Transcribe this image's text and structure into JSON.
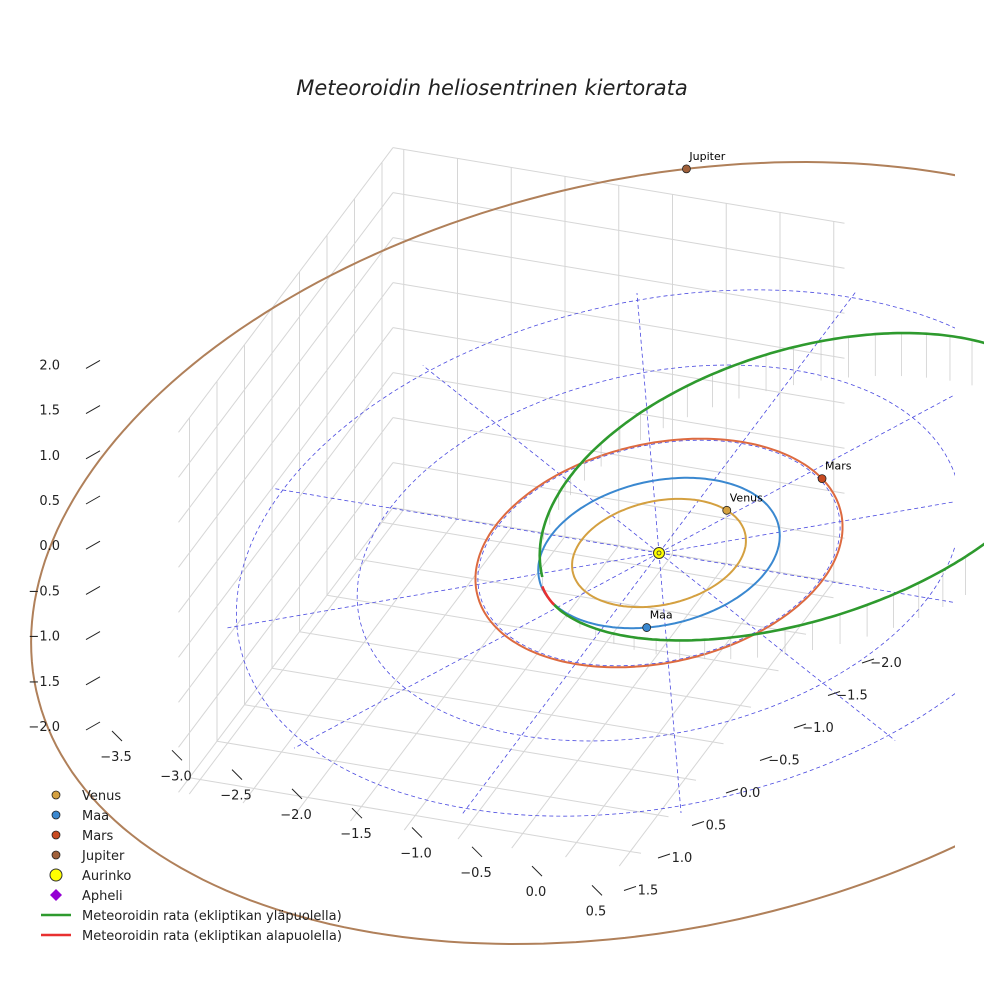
{
  "chart_data": {
    "type": "line",
    "projection": "3d",
    "title": "Meteoroidin heliosentrinen kiertorata",
    "xlabel": "",
    "ylabel": "",
    "zlabel": "",
    "x_ticks": [
      "−3.5",
      "−3.0",
      "−2.5",
      "−2.0",
      "−1.5",
      "−1.0",
      "−0.5",
      "0.0",
      "0.5"
    ],
    "y_ticks": [
      "−2.0",
      "−1.5",
      "−1.0",
      "−0.5",
      "0.0",
      "0.5",
      "1.0",
      "1.5"
    ],
    "z_ticks": [
      "−2.0",
      "−1.5",
      "−1.0",
      "−0.5",
      "0.0",
      "0.5",
      "1.0",
      "1.5",
      "2.0"
    ],
    "xlim": [
      -3.6,
      0.6
    ],
    "ylim": [
      -2.2,
      1.7
    ],
    "zlim": [
      -2.0,
      2.0
    ],
    "grid": true,
    "legend_position": "bottom-left",
    "colors": {
      "venus": "#d4a040",
      "maa": "#3a88d0",
      "mars": "#dd6a40",
      "jupiter": "#b0805a",
      "aurinko": "#ffff00",
      "apheli": "#9400d3",
      "above": "#2e9a2e",
      "below": "#e83030",
      "reference": "#4a4ae0"
    },
    "orbits": [
      {
        "name": "Venus",
        "radius_au": 0.72
      },
      {
        "name": "Maa",
        "radius_au": 1.0
      },
      {
        "name": "Mars",
        "radius_au": 1.52
      },
      {
        "name": "Jupiter",
        "radius_au": 5.2
      }
    ],
    "planet_labels": [
      {
        "name": "Venus",
        "text": "Venus"
      },
      {
        "name": "Maa",
        "text": "Maa"
      },
      {
        "name": "Mars",
        "text": "Mars"
      },
      {
        "name": "Jupiter",
        "text": "Jupiter"
      }
    ],
    "meteoroid": {
      "perihelion_au": 0.98,
      "aphelion_au": 3.4,
      "above_label": "Meteoroidin rata (ekliptikan yläpuolella)",
      "below_label": "Meteoroidin rata (ekliptikan alapuolella)"
    },
    "legend": [
      {
        "label": "Venus",
        "marker": "dot",
        "color": "#d4a040"
      },
      {
        "label": "Maa",
        "marker": "dot",
        "color": "#3a88d0"
      },
      {
        "label": "Mars",
        "marker": "dot",
        "color": "#c84a20"
      },
      {
        "label": "Jupiter",
        "marker": "dot",
        "color": "#a0603a"
      },
      {
        "label": "Aurinko",
        "marker": "sun",
        "color": "#ffff00"
      },
      {
        "label": "Apheli",
        "marker": "diamond",
        "color": "#9400d3"
      },
      {
        "label": "Meteoroidin rata (ekliptikan yläpuolella)",
        "marker": "line",
        "color": "#2e9a2e"
      },
      {
        "label": "Meteoroidin rata (ekliptikan alapuolella)",
        "marker": "line",
        "color": "#e83030"
      }
    ]
  }
}
